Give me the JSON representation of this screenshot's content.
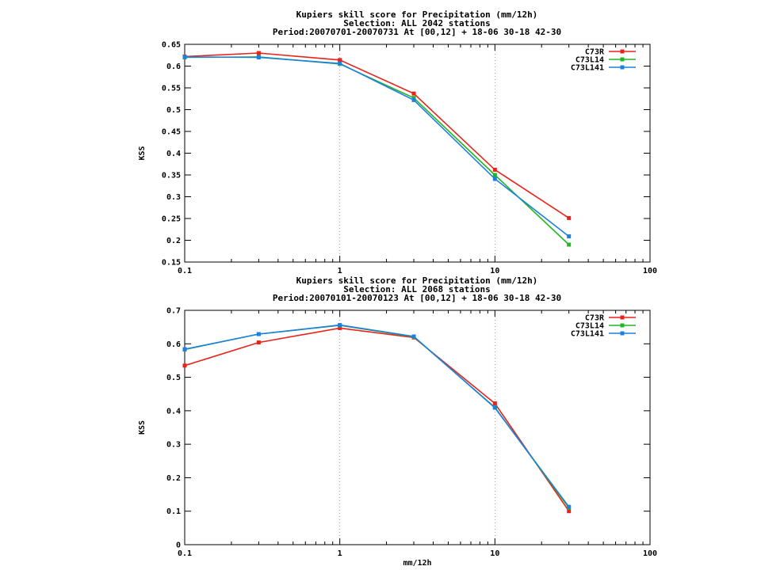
{
  "chart_data": [
    {
      "type": "line",
      "title_lines": [
        "Kupiers skill score  for Precipitation (mm/12h)",
        "Selection: ALL   2042 stations",
        "Period:20070701-20070731  At [00,12] + 18-06 30-18 42-30"
      ],
      "xlabel": "",
      "ylabel": "KSS",
      "x_scale": "log",
      "xlim": [
        0.1,
        100
      ],
      "ylim": [
        0.15,
        0.65
      ],
      "x_ticks": [
        0.1,
        1,
        10,
        100
      ],
      "x_tick_labels": [
        "0.1",
        "1",
        "10",
        "100"
      ],
      "y_ticks": [
        0.15,
        0.2,
        0.25,
        0.3,
        0.35,
        0.4,
        0.45,
        0.5,
        0.55,
        0.6,
        0.65
      ],
      "y_tick_labels": [
        "0.15",
        "0.2",
        "0.25",
        "0.3",
        "0.35",
        "0.4",
        "0.45",
        "0.5",
        "0.55",
        "0.6",
        "0.65"
      ],
      "grid": "dotted, at x decades",
      "legend_position": "top-right",
      "x": [
        0.1,
        0.3,
        1,
        3,
        10,
        30
      ],
      "series": [
        {
          "name": "C73R",
          "color": "#e8231b",
          "values": [
            0.622,
            0.63,
            0.614,
            0.537,
            0.362,
            0.251
          ]
        },
        {
          "name": "C73L14",
          "color": "#22b722",
          "values": [
            0.62,
            0.621,
            0.605,
            0.527,
            0.35,
            0.19
          ]
        },
        {
          "name": "C73L141",
          "color": "#1f7fe0",
          "values": [
            0.621,
            0.62,
            0.606,
            0.522,
            0.341,
            0.209
          ]
        }
      ]
    },
    {
      "type": "line",
      "title_lines": [
        "Kupiers skill score  for Precipitation (mm/12h)",
        "Selection: ALL   2068 stations",
        "Period:20070101-20070123  At [00,12] + 18-06 30-18 42-30"
      ],
      "xlabel": "mm/12h",
      "ylabel": "KSS",
      "x_scale": "log",
      "xlim": [
        0.1,
        100
      ],
      "ylim": [
        0,
        0.7
      ],
      "x_ticks": [
        0.1,
        1,
        10,
        100
      ],
      "x_tick_labels": [
        "0.1",
        "1",
        "10",
        "100"
      ],
      "y_ticks": [
        0,
        0.1,
        0.2,
        0.3,
        0.4,
        0.5,
        0.6,
        0.7
      ],
      "y_tick_labels": [
        "0",
        "0.1",
        "0.2",
        "0.3",
        "0.4",
        "0.5",
        "0.6",
        "0.7"
      ],
      "grid": "dotted, at x decades",
      "legend_position": "top-right",
      "x": [
        0.1,
        0.3,
        1,
        3,
        10,
        30
      ],
      "series": [
        {
          "name": "C73R",
          "color": "#e8231b",
          "values": [
            0.535,
            0.604,
            0.647,
            0.619,
            0.422,
            0.1
          ]
        },
        {
          "name": "C73L14",
          "color": "#22b722",
          "values": [
            0.583,
            0.629,
            0.655,
            0.621,
            0.41,
            0.11
          ]
        },
        {
          "name": "C73L141",
          "color": "#1f7fe0",
          "values": [
            0.584,
            0.629,
            0.656,
            0.622,
            0.409,
            0.113
          ]
        }
      ]
    }
  ]
}
